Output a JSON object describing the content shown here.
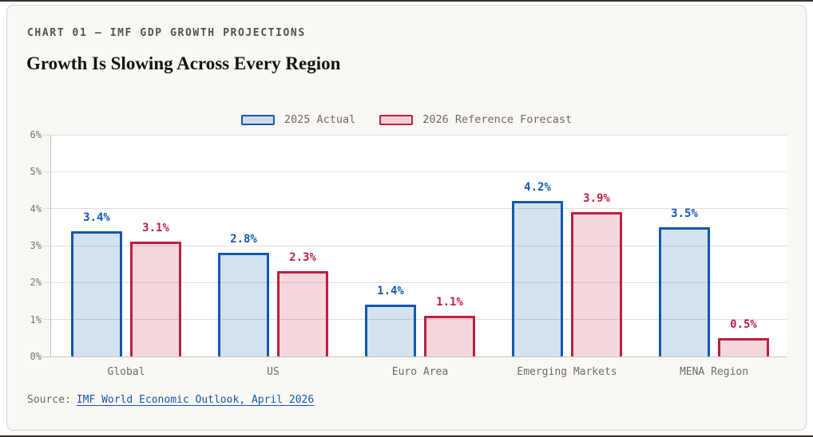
{
  "page": {
    "eyebrow": "CHART 01 — IMF GDP GROWTH PROJECTIONS",
    "title": "Growth Is Slowing Across Every Region"
  },
  "source": {
    "prefix": "Source:",
    "link_text": "IMF World Economic Outlook, April 2026"
  },
  "colors": {
    "series_2025": "#1158b0",
    "series_2026": "#bd1f3e",
    "link": "#1457ad",
    "card_background": "#faf8f4"
  },
  "chart_data": {
    "type": "bar",
    "title": "Growth Is Slowing Across Every Region",
    "categories": [
      "Global",
      "US",
      "Euro Area",
      "Emerging Markets",
      "MENA Region"
    ],
    "series": [
      {
        "name": "2025 Actual",
        "values": [
          3.4,
          2.8,
          1.4,
          4.2,
          3.5
        ],
        "labels": [
          "3.4%",
          "2.8%",
          "1.4%",
          "4.2%",
          "3.5%"
        ],
        "color": "#1158b0"
      },
      {
        "name": "2026 Reference Forecast",
        "values": [
          3.1,
          2.3,
          1.1,
          3.9,
          0.5
        ],
        "labels": [
          "3.1%",
          "2.3%",
          "1.1%",
          "3.9%",
          "0.5%"
        ],
        "color": "#bd1f3e"
      }
    ],
    "xlabel": "",
    "ylabel": "",
    "ylim": [
      0,
      6
    ],
    "yticks": [
      "0%",
      "1%",
      "2%",
      "3%",
      "4%",
      "5%",
      "6%"
    ],
    "grid": true,
    "legend_position": "top-center"
  }
}
